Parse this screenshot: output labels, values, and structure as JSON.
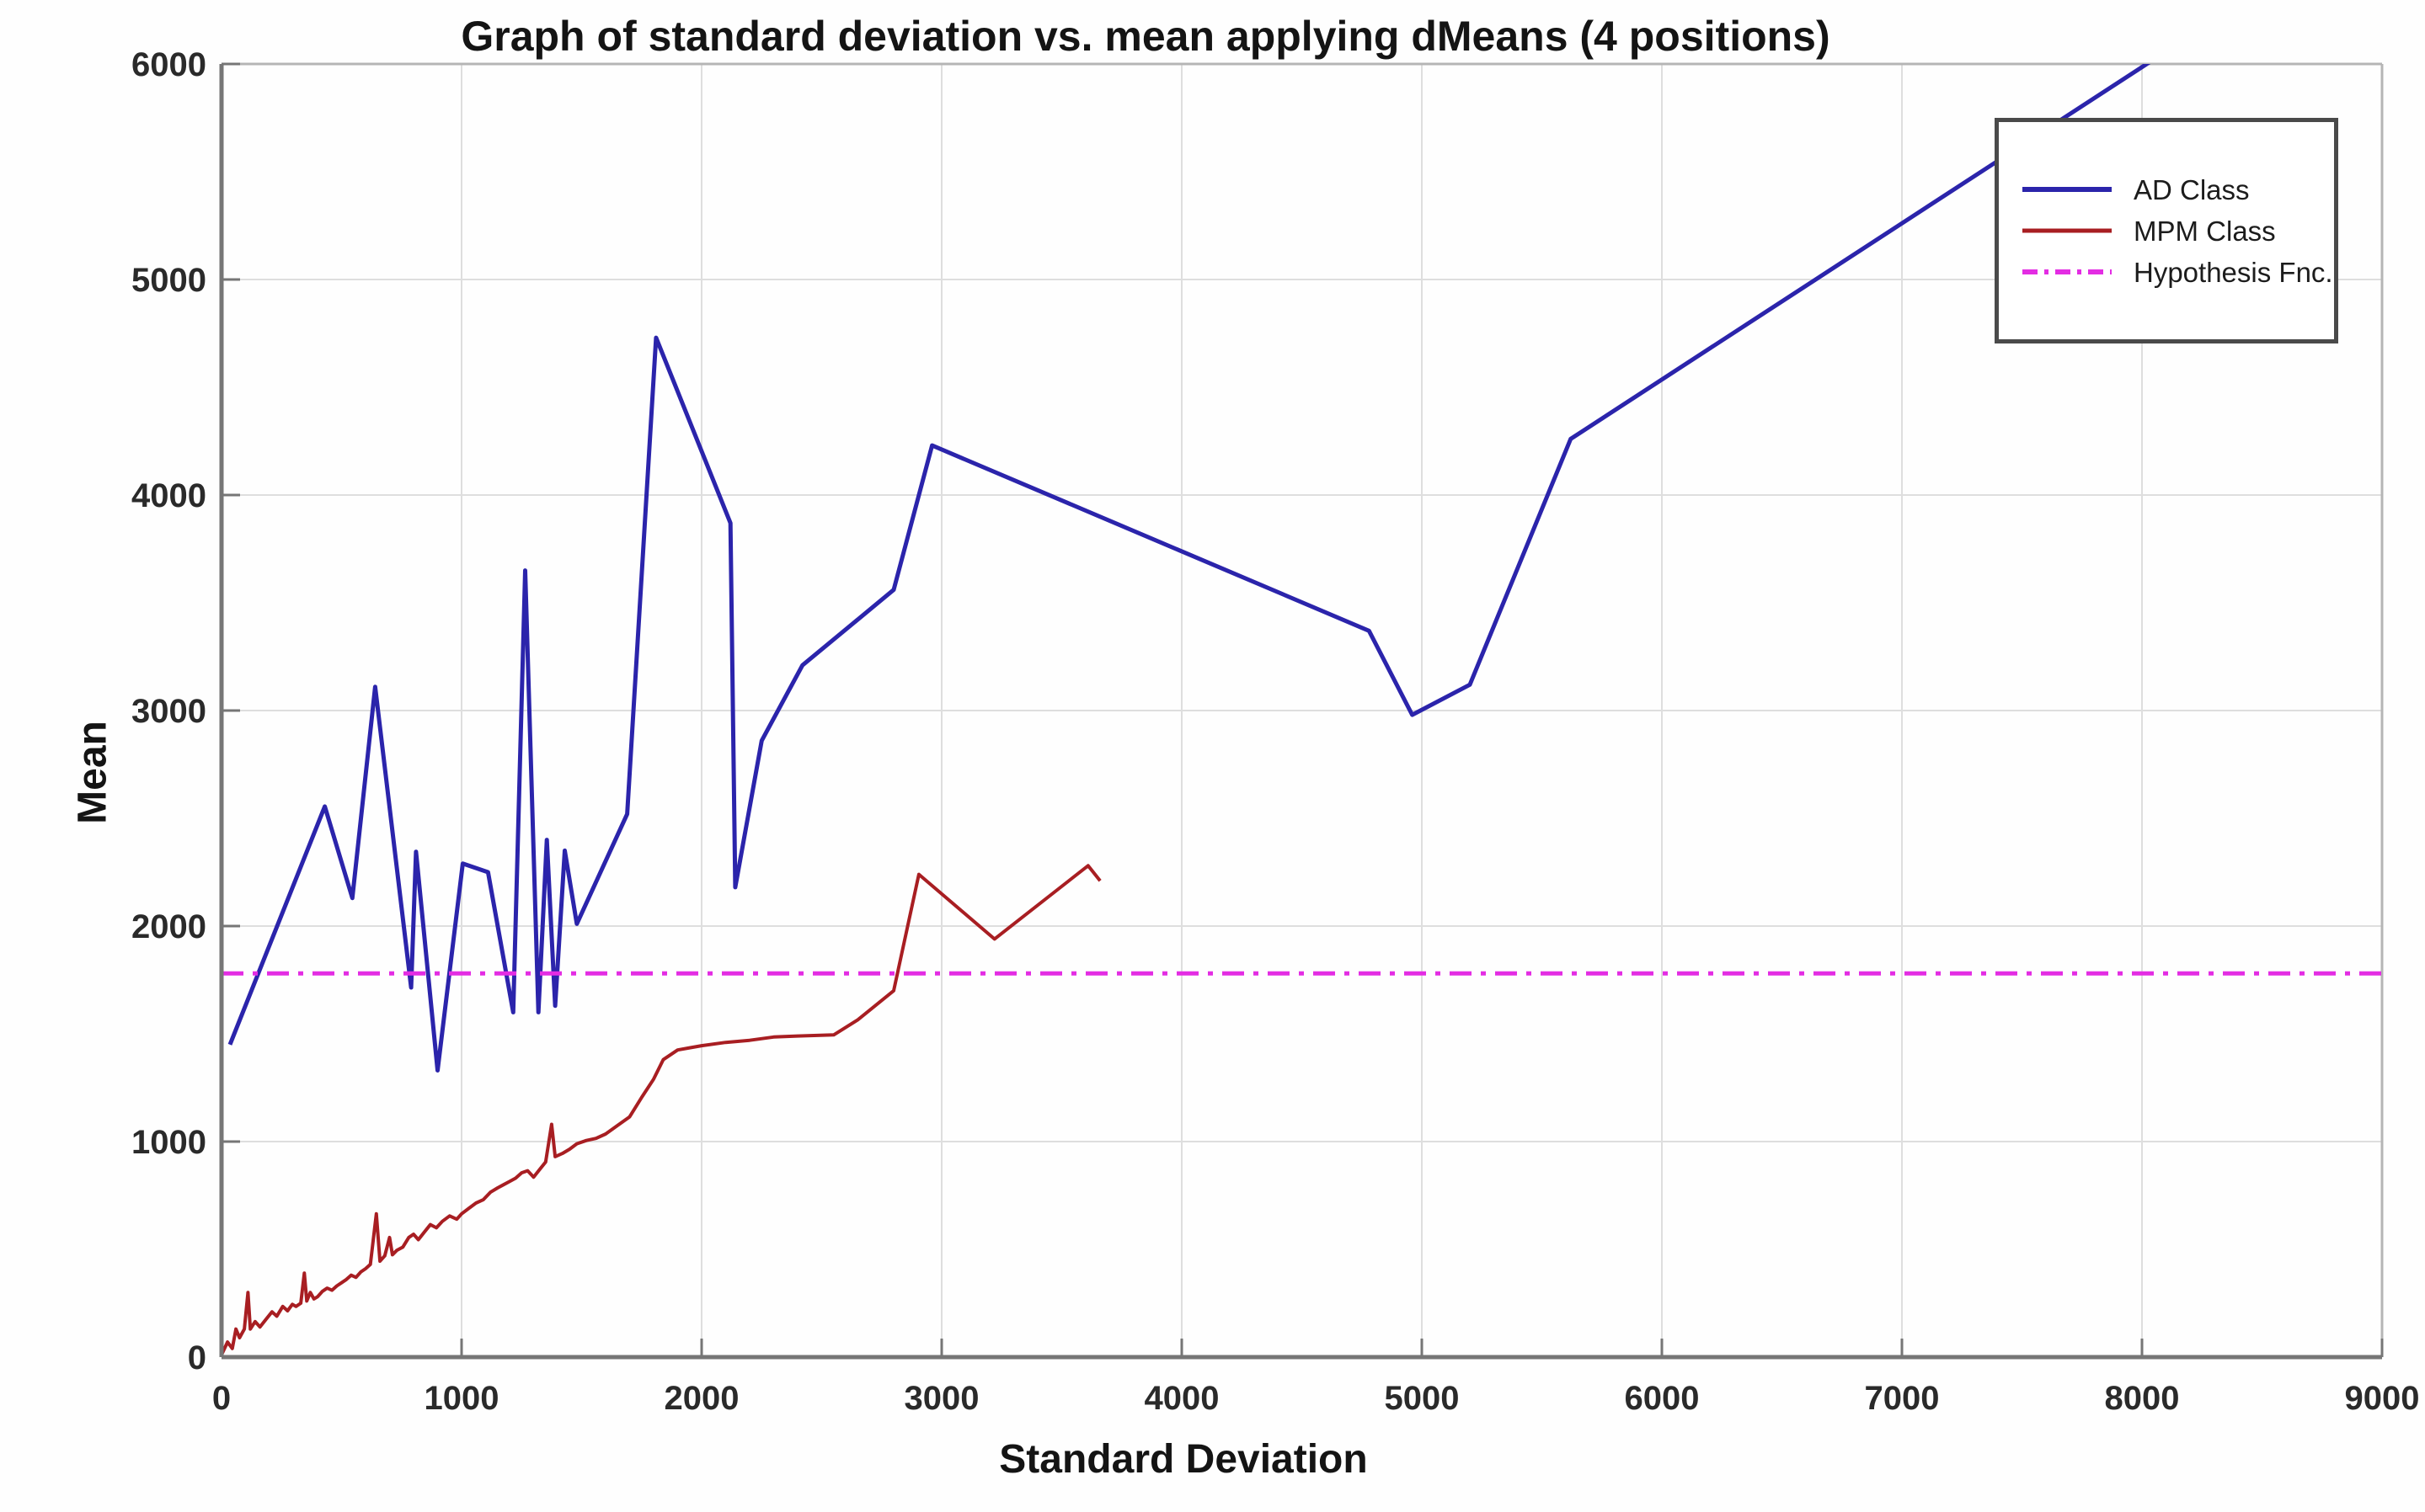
{
  "chart_data": {
    "type": "line",
    "title": "Graph of standard deviation vs. mean applying dMeans (4 positions)",
    "xlabel": "Standard Deviation",
    "ylabel": "Mean",
    "xlim": [
      0,
      9000
    ],
    "ylim": [
      0,
      6000
    ],
    "x_ticks": [
      0,
      1000,
      2000,
      3000,
      4000,
      5000,
      6000,
      7000,
      8000,
      9000
    ],
    "y_ticks": [
      0,
      1000,
      2000,
      3000,
      4000,
      5000,
      6000
    ],
    "grid": true,
    "legend_position": "top-right",
    "colors": {
      "ad_class": "#2b24ab",
      "mpm_class": "#a81e22",
      "hypothesis": "#e32de3",
      "grid_line": "#dedede",
      "axis_line": "#767676",
      "box_line": "#b5b5b5",
      "tick_text": "#2a2a2a"
    },
    "hypothesis_value": 1780,
    "series": [
      {
        "name": "AD Class",
        "style": "solid",
        "points": [
          [
            35,
            1450
          ],
          [
            430,
            2555
          ],
          [
            545,
            2130
          ],
          [
            640,
            3110
          ],
          [
            790,
            1715
          ],
          [
            810,
            2345
          ],
          [
            900,
            1330
          ],
          [
            1005,
            2290
          ],
          [
            1110,
            2250
          ],
          [
            1215,
            1600
          ],
          [
            1265,
            3650
          ],
          [
            1320,
            1600
          ],
          [
            1355,
            2400
          ],
          [
            1390,
            1630
          ],
          [
            1430,
            2350
          ],
          [
            1480,
            2010
          ],
          [
            1690,
            2520
          ],
          [
            1810,
            4730
          ],
          [
            2120,
            3870
          ],
          [
            2140,
            2180
          ],
          [
            2250,
            2860
          ],
          [
            2420,
            3210
          ],
          [
            2800,
            3560
          ],
          [
            2960,
            4230
          ],
          [
            4780,
            3370
          ],
          [
            4960,
            2980
          ],
          [
            5200,
            3120
          ],
          [
            5620,
            4260
          ],
          [
            8130,
            6080
          ]
        ]
      },
      {
        "name": "MPM Class",
        "style": "solid",
        "points": [
          [
            0,
            10
          ],
          [
            25,
            70
          ],
          [
            45,
            40
          ],
          [
            60,
            130
          ],
          [
            75,
            90
          ],
          [
            95,
            130
          ],
          [
            110,
            300
          ],
          [
            120,
            130
          ],
          [
            140,
            165
          ],
          [
            160,
            140
          ],
          [
            185,
            175
          ],
          [
            210,
            210
          ],
          [
            230,
            190
          ],
          [
            255,
            235
          ],
          [
            275,
            215
          ],
          [
            295,
            245
          ],
          [
            310,
            235
          ],
          [
            330,
            250
          ],
          [
            345,
            390
          ],
          [
            355,
            260
          ],
          [
            370,
            300
          ],
          [
            385,
            270
          ],
          [
            400,
            280
          ],
          [
            420,
            305
          ],
          [
            440,
            320
          ],
          [
            460,
            310
          ],
          [
            480,
            330
          ],
          [
            500,
            345
          ],
          [
            520,
            360
          ],
          [
            540,
            380
          ],
          [
            560,
            370
          ],
          [
            580,
            395
          ],
          [
            600,
            410
          ],
          [
            620,
            430
          ],
          [
            645,
            665
          ],
          [
            660,
            445
          ],
          [
            680,
            470
          ],
          [
            700,
            555
          ],
          [
            712,
            475
          ],
          [
            730,
            495
          ],
          [
            755,
            510
          ],
          [
            780,
            555
          ],
          [
            800,
            570
          ],
          [
            820,
            545
          ],
          [
            845,
            580
          ],
          [
            870,
            615
          ],
          [
            895,
            600
          ],
          [
            920,
            630
          ],
          [
            950,
            655
          ],
          [
            980,
            640
          ],
          [
            1000,
            665
          ],
          [
            1030,
            690
          ],
          [
            1060,
            715
          ],
          [
            1090,
            730
          ],
          [
            1120,
            765
          ],
          [
            1150,
            785
          ],
          [
            1175,
            800
          ],
          [
            1200,
            815
          ],
          [
            1225,
            830
          ],
          [
            1250,
            855
          ],
          [
            1275,
            865
          ],
          [
            1300,
            835
          ],
          [
            1325,
            870
          ],
          [
            1350,
            905
          ],
          [
            1375,
            1080
          ],
          [
            1390,
            930
          ],
          [
            1420,
            945
          ],
          [
            1450,
            965
          ],
          [
            1480,
            990
          ],
          [
            1520,
            1005
          ],
          [
            1560,
            1015
          ],
          [
            1600,
            1035
          ],
          [
            1650,
            1075
          ],
          [
            1700,
            1115
          ],
          [
            1750,
            1205
          ],
          [
            1800,
            1290
          ],
          [
            1840,
            1380
          ],
          [
            1900,
            1425
          ],
          [
            1950,
            1435
          ],
          [
            2000,
            1445
          ],
          [
            2100,
            1460
          ],
          [
            2200,
            1470
          ],
          [
            2300,
            1485
          ],
          [
            2400,
            1490
          ],
          [
            2550,
            1495
          ],
          [
            2650,
            1565
          ],
          [
            2800,
            1700
          ],
          [
            2905,
            2240
          ],
          [
            3220,
            1940
          ],
          [
            3610,
            2280
          ],
          [
            3660,
            2210
          ]
        ]
      },
      {
        "name": "Hypothesis Fnc.",
        "style": "dash-dot",
        "points": [
          [
            0,
            1780
          ],
          [
            9000,
            1780
          ]
        ]
      }
    ]
  }
}
